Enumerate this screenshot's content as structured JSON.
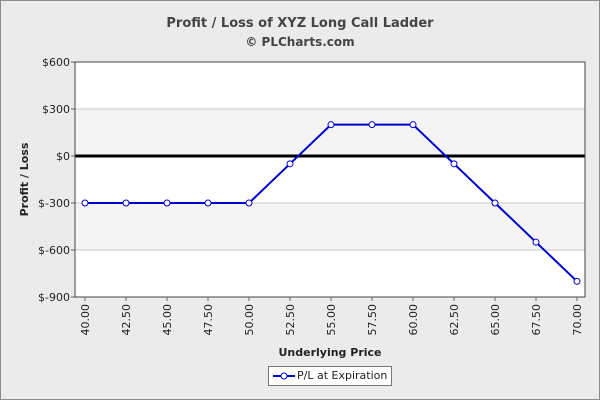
{
  "chart_data": {
    "type": "line",
    "title": "Profit / Loss of XYZ Long Call Ladder",
    "subtitle": "© PLCharts.com",
    "xlabel": "Underlying Price",
    "ylabel": "Profit / Loss",
    "categories": [
      "40.00",
      "42.50",
      "45.00",
      "47.50",
      "50.00",
      "52.50",
      "55.00",
      "57.50",
      "60.00",
      "62.50",
      "65.00",
      "67.50",
      "70.00"
    ],
    "ylim": [
      -900,
      600
    ],
    "yticks": [
      600,
      300,
      0,
      -300,
      -600,
      -900
    ],
    "ytick_labels": [
      "$600",
      "$300",
      "$0",
      "$-300",
      "$-600",
      "$-900"
    ],
    "series": [
      {
        "name": "P/L at Expiration",
        "values": [
          -300,
          -300,
          -300,
          -300,
          -300,
          -50,
          200,
          200,
          200,
          -50,
          -300,
          -550,
          -800
        ]
      }
    ],
    "legend": "bottom-center",
    "grid": true,
    "colors": {
      "line": "#0000cc",
      "zero_line": "#000000",
      "plot_bg": "#ffffff",
      "plot_band": "#f4f4f4",
      "frame_bg": "#ebebeb"
    }
  }
}
